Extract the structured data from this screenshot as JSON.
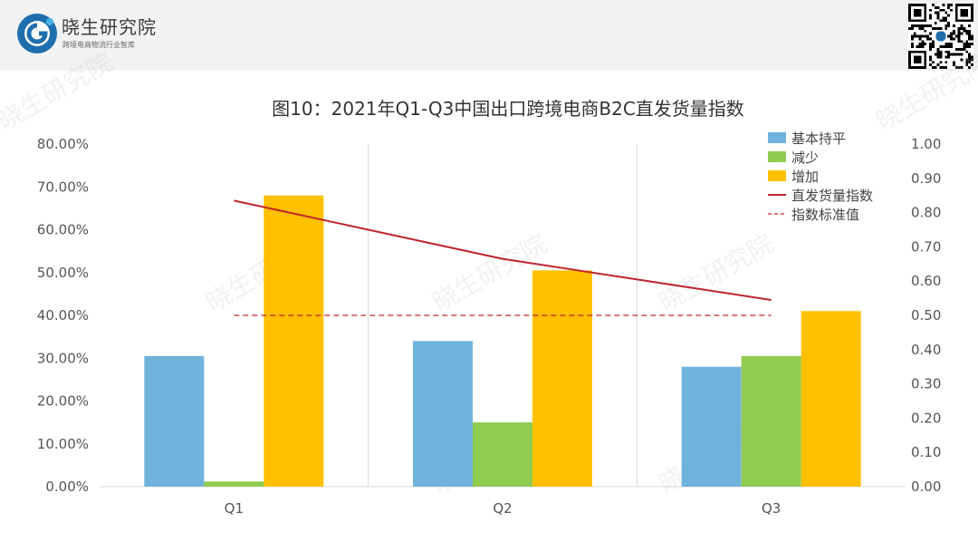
{
  "header": {
    "brand_name": "晓生研究院",
    "tagline": "跨境电商物流行业智库",
    "watermark_text": "晓生研究院"
  },
  "colors": {
    "series_base": "#6fb3dd",
    "series_decrease": "#8fcc4f",
    "series_increase": "#ffc000",
    "index_line": "#c0262d",
    "standard_line": "#c0262d",
    "logo_blue": "#1f6fae"
  },
  "chart_data": {
    "type": "bar",
    "title": "图10：2021年Q1-Q3中国出口跨境电商B2C直发货量指数",
    "categories": [
      "Q1",
      "Q2",
      "Q3"
    ],
    "series": [
      {
        "name": "基本持平",
        "values": [
          30.5,
          34.0,
          28.0
        ]
      },
      {
        "name": "减少",
        "values": [
          1.2,
          15.0,
          30.5
        ]
      },
      {
        "name": "增加",
        "values": [
          68.0,
          50.5,
          41.0
        ]
      }
    ],
    "line_series": [
      {
        "name": "直发货量指数",
        "values": [
          0.835,
          0.665,
          0.545
        ],
        "axis": "right",
        "style": "solid"
      },
      {
        "name": "指数标准值",
        "values": [
          0.5,
          0.5,
          0.5
        ],
        "axis": "right",
        "style": "dashed"
      }
    ],
    "ylim": [
      0,
      80
    ],
    "y2lim": [
      0,
      1.0
    ],
    "y_ticks": [
      "0.00%",
      "10.00%",
      "20.00%",
      "30.00%",
      "40.00%",
      "50.00%",
      "60.00%",
      "70.00%",
      "80.00%"
    ],
    "y2_ticks": [
      "0.00",
      "0.10",
      "0.20",
      "0.30",
      "0.40",
      "0.50",
      "0.60",
      "0.70",
      "0.80",
      "0.90",
      "1.00"
    ],
    "legend_position": "top-right",
    "grid": false
  }
}
